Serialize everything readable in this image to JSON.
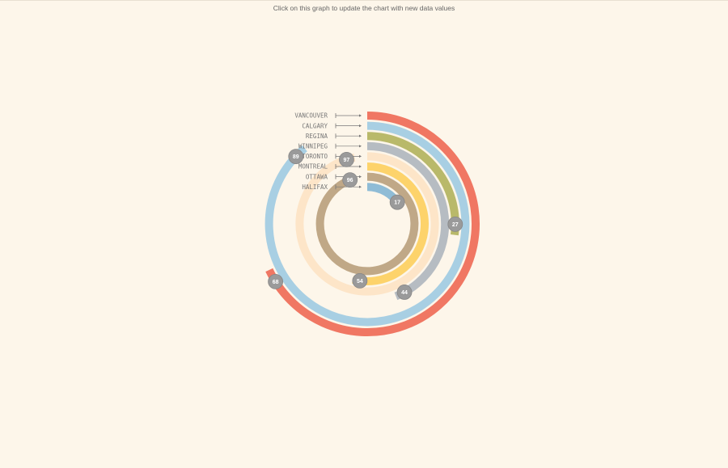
{
  "header": {
    "instruction": "Click on this graph to update the chart with new data values"
  },
  "chart_data": {
    "type": "radial-bar",
    "max_value": 100,
    "series": [
      {
        "name": "VANCOUVER",
        "value": 68,
        "color": "#f07763",
        "badge": "68"
      },
      {
        "name": "CALGARY",
        "value": 89,
        "color": "#a8cfe3",
        "badge": "89"
      },
      {
        "name": "REGINA",
        "value": 27,
        "color": "#b9b96a",
        "badge": "27"
      },
      {
        "name": "WINNIPEG",
        "value": 44,
        "color": "#b6bcc2",
        "badge": "44"
      },
      {
        "name": "TORONTO",
        "value": 97,
        "color": "#fde5c8",
        "badge": "97"
      },
      {
        "name": "MONTREAL",
        "value": 54,
        "color": "#fdd36b",
        "badge": "54"
      },
      {
        "name": "OTTAWA",
        "value": 96,
        "color": "#c0a887",
        "badge": "96"
      },
      {
        "name": "HALIFAX",
        "value": 17,
        "color": "#8fbcd6",
        "badge": "17"
      }
    ],
    "badge_color": "#9a9a9a"
  }
}
